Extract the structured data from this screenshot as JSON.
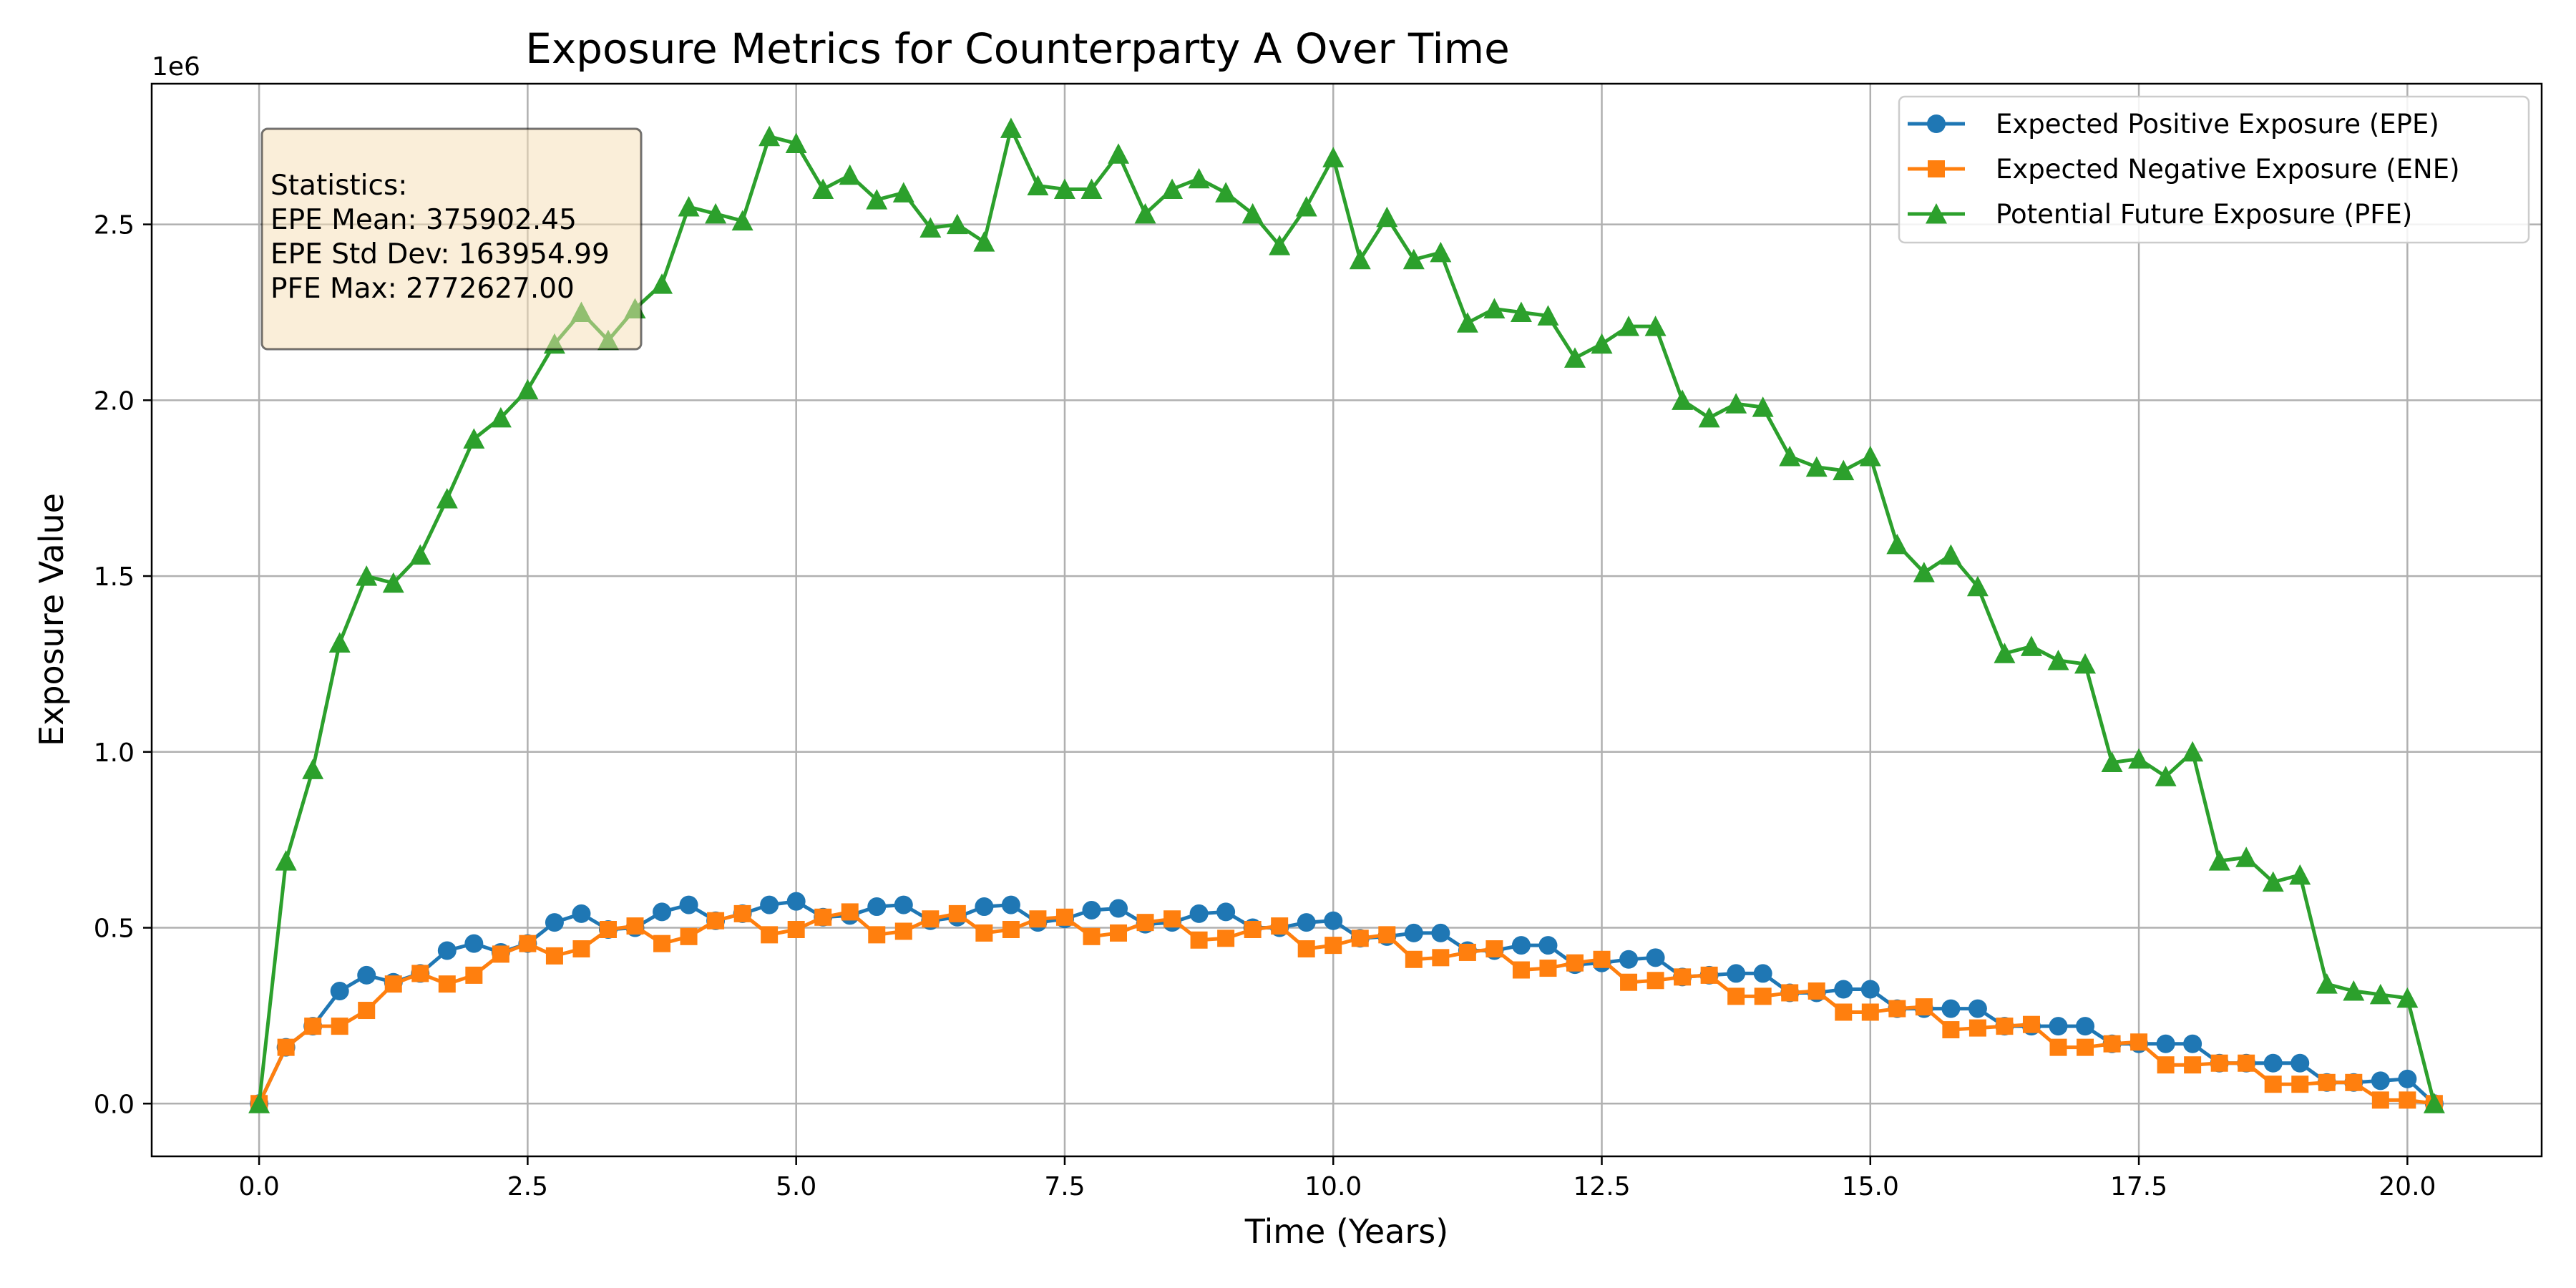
{
  "chart_data": {
    "type": "line",
    "title": "Exposure Metrics for Counterparty A Over Time",
    "xlabel": "Time (Years)",
    "ylabel": "Exposure Value",
    "y_offset_label": "1e6",
    "xlim": [
      -1.0,
      21.25
    ],
    "ylim": [
      -150000,
      2900000
    ],
    "x_ticks": [
      0.0,
      2.5,
      5.0,
      7.5,
      10.0,
      12.5,
      15.0,
      17.5,
      20.0
    ],
    "x_tick_labels": [
      "0.0",
      "2.5",
      "5.0",
      "7.5",
      "10.0",
      "12.5",
      "15.0",
      "17.5",
      "20.0"
    ],
    "y_ticks": [
      0,
      500000,
      1000000,
      1500000,
      2000000,
      2500000
    ],
    "y_tick_labels": [
      "0.0",
      "0.5",
      "1.0",
      "1.5",
      "2.0",
      "2.5"
    ],
    "grid": true,
    "legend_position": "top-right",
    "x": [
      0,
      0.25,
      0.5,
      0.75,
      1,
      1.25,
      1.5,
      1.75,
      2,
      2.25,
      2.5,
      2.75,
      3,
      3.25,
      3.5,
      3.75,
      4,
      4.25,
      4.5,
      4.75,
      5,
      5.25,
      5.5,
      5.75,
      6,
      6.25,
      6.5,
      6.75,
      7,
      7.25,
      7.5,
      7.75,
      8,
      8.25,
      8.5,
      8.75,
      9,
      9.25,
      9.5,
      9.75,
      10,
      10.25,
      10.5,
      10.75,
      11,
      11.25,
      11.5,
      11.75,
      12,
      12.25,
      12.5,
      12.75,
      13,
      13.25,
      13.5,
      13.75,
      14,
      14.25,
      14.5,
      14.75,
      15,
      15.25,
      15.5,
      15.75,
      16,
      16.25,
      16.5,
      16.75,
      17,
      17.25,
      17.5,
      17.75,
      18,
      18.25,
      18.5,
      18.75,
      19,
      19.25,
      19.5,
      19.75,
      20,
      20.25
    ],
    "series": [
      {
        "name": "Expected Positive Exposure (EPE)",
        "color": "#1f77b4",
        "marker": "circle",
        "values": [
          0,
          160000,
          220000,
          320000,
          365000,
          345000,
          370000,
          435000,
          455000,
          430000,
          455000,
          515000,
          540000,
          495000,
          500000,
          545000,
          565000,
          520000,
          540000,
          565000,
          575000,
          530000,
          535000,
          560000,
          565000,
          520000,
          530000,
          560000,
          565000,
          515000,
          525000,
          550000,
          555000,
          510000,
          515000,
          540000,
          545000,
          500000,
          500000,
          515000,
          520000,
          470000,
          475000,
          485000,
          485000,
          435000,
          435000,
          450000,
          450000,
          395000,
          400000,
          410000,
          415000,
          360000,
          365000,
          370000,
          370000,
          315000,
          315000,
          325000,
          325000,
          270000,
          270000,
          270000,
          270000,
          220000,
          220000,
          220000,
          220000,
          170000,
          170000,
          170000,
          170000,
          115000,
          115000,
          115000,
          115000,
          60000,
          60000,
          65000,
          70000,
          0
        ]
      },
      {
        "name": "Expected Negative Exposure (ENE)",
        "color": "#ff7f0e",
        "marker": "square",
        "values": [
          0,
          160000,
          220000,
          220000,
          265000,
          340000,
          370000,
          340000,
          365000,
          425000,
          455000,
          420000,
          440000,
          495000,
          505000,
          455000,
          475000,
          520000,
          540000,
          480000,
          495000,
          530000,
          545000,
          480000,
          490000,
          525000,
          540000,
          485000,
          495000,
          525000,
          530000,
          475000,
          485000,
          515000,
          525000,
          465000,
          470000,
          495000,
          505000,
          440000,
          450000,
          470000,
          480000,
          410000,
          415000,
          430000,
          440000,
          380000,
          385000,
          400000,
          410000,
          345000,
          350000,
          360000,
          365000,
          305000,
          305000,
          315000,
          320000,
          260000,
          260000,
          270000,
          275000,
          210000,
          215000,
          220000,
          225000,
          160000,
          160000,
          170000,
          175000,
          110000,
          110000,
          115000,
          115000,
          55000,
          55000,
          60000,
          60000,
          10000,
          10000,
          0
        ]
      },
      {
        "name": "Potential Future Exposure (PFE)",
        "color": "#2ca02c",
        "marker": "triangle",
        "values": [
          0,
          690000,
          950000,
          1310000,
          1500000,
          1480000,
          1560000,
          1720000,
          1890000,
          1950000,
          2030000,
          2160000,
          2250000,
          2170000,
          2260000,
          2330000,
          2550000,
          2530000,
          2510000,
          2750000,
          2730000,
          2600000,
          2640000,
          2570000,
          2590000,
          2490000,
          2500000,
          2450000,
          2773000,
          2610000,
          2600000,
          2600000,
          2700000,
          2530000,
          2600000,
          2630000,
          2590000,
          2530000,
          2440000,
          2550000,
          2690000,
          2400000,
          2520000,
          2400000,
          2420000,
          2220000,
          2260000,
          2250000,
          2240000,
          2120000,
          2160000,
          2210000,
          2210000,
          2000000,
          1950000,
          1990000,
          1980000,
          1840000,
          1810000,
          1800000,
          1840000,
          1590000,
          1510000,
          1560000,
          1470000,
          1280000,
          1300000,
          1260000,
          1250000,
          970000,
          980000,
          930000,
          1000000,
          690000,
          700000,
          630000,
          650000,
          340000,
          320000,
          310000,
          300000,
          0
        ]
      }
    ],
    "annotation": {
      "lines": [
        "Statistics:",
        "EPE Mean: 375902.45",
        "EPE Std Dev: 163954.99",
        "PFE Max: 2772627.00"
      ],
      "placement": "top-left",
      "background": "#f5deb3"
    }
  }
}
